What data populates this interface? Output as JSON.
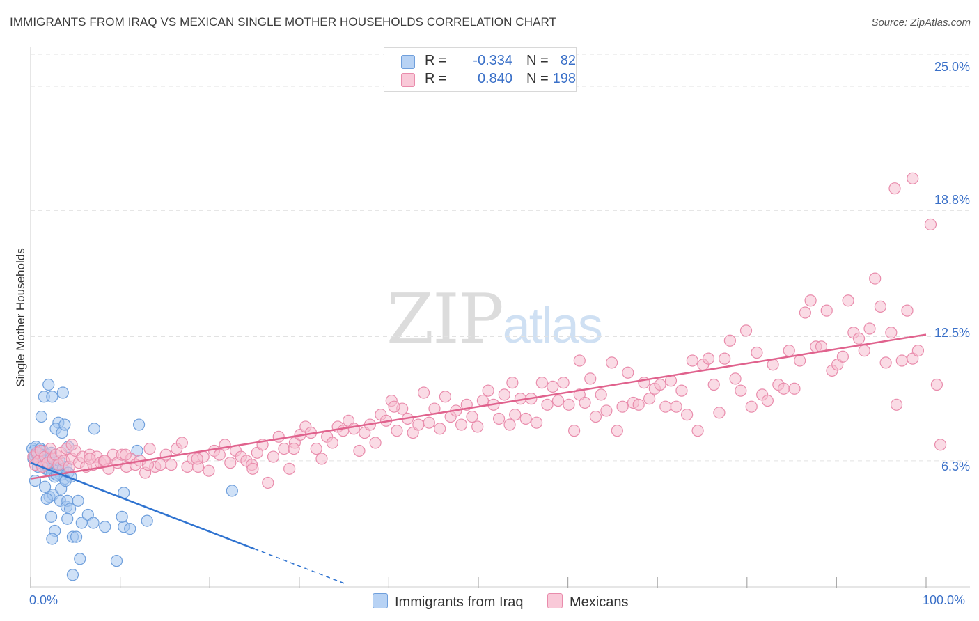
{
  "title": "IMMIGRANTS FROM IRAQ VS MEXICAN SINGLE MOTHER HOUSEHOLDS CORRELATION CHART",
  "source": "Source: ZipAtlas.com",
  "watermark": {
    "zip": "ZIP",
    "atlas": "atlas"
  },
  "legend": {
    "r_label": "R =",
    "n_label": "N =",
    "iraq": {
      "r": "-0.334",
      "n": "82"
    },
    "mexicans": {
      "r": "0.840",
      "n": "198"
    }
  },
  "colors": {
    "iraq_fill": "#a8c8f0",
    "iraq_stroke": "#6f9fdc",
    "iraq_line": "#2f73d0",
    "mex_fill": "#f6bdd0",
    "mex_stroke": "#e98cac",
    "mex_line": "#e0628d",
    "tick_text": "#3a70c8",
    "grid": "#e2e2e2"
  },
  "chart_data": {
    "type": "scatter",
    "title": "IMMIGRANTS FROM IRAQ VS MEXICAN SINGLE MOTHER HOUSEHOLDS CORRELATION CHART",
    "xlabel": "",
    "ylabel": "Single Mother Households",
    "x_unit": "%",
    "xlim": [
      0,
      100
    ],
    "ylim": [
      0,
      26.6
    ],
    "y_ticks": [
      6.3,
      12.5,
      18.8,
      25.0
    ],
    "y_tick_labels": [
      "6.3%",
      "12.5%",
      "18.8%",
      "25.0%"
    ],
    "x_tick_labels": [
      "0.0%",
      "100.0%"
    ],
    "grid": true,
    "legend_position": "bottom-center",
    "series": [
      {
        "name": "Immigrants from Iraq",
        "r": -0.334,
        "n": 82,
        "trend": {
          "x0": 0,
          "y0": 6.2,
          "x1": 25,
          "y1": 1.9,
          "dashed_to_x": 35
        },
        "points": [
          [
            0.2,
            6.9
          ],
          [
            0.3,
            6.4
          ],
          [
            0.4,
            6.8
          ],
          [
            0.5,
            6.5
          ],
          [
            0.6,
            7.0
          ],
          [
            0.7,
            6.6
          ],
          [
            0.8,
            6.3
          ],
          [
            0.9,
            6.7
          ],
          [
            1.0,
            6.2
          ],
          [
            1.1,
            6.9
          ],
          [
            1.2,
            6.5
          ],
          [
            1.3,
            6.4
          ],
          [
            1.4,
            6.8
          ],
          [
            1.5,
            6.1
          ],
          [
            1.6,
            6.6
          ],
          [
            1.7,
            5.9
          ],
          [
            1.8,
            6.3
          ],
          [
            1.9,
            6.6
          ],
          [
            2.0,
            6.0
          ],
          [
            2.1,
            5.8
          ],
          [
            2.2,
            6.4
          ],
          [
            2.3,
            6.7
          ],
          [
            2.4,
            5.7
          ],
          [
            2.6,
            6.2
          ],
          [
            2.7,
            5.5
          ],
          [
            2.8,
            6.1
          ],
          [
            3.0,
            5.8
          ],
          [
            3.2,
            6.3
          ],
          [
            3.4,
            5.6
          ],
          [
            3.6,
            5.9
          ],
          [
            3.8,
            5.4
          ],
          [
            4.0,
            6.0
          ],
          [
            4.2,
            5.7
          ],
          [
            4.5,
            5.5
          ],
          [
            0.5,
            5.3
          ],
          [
            1.2,
            8.5
          ],
          [
            1.5,
            9.5
          ],
          [
            2.0,
            10.1
          ],
          [
            2.4,
            9.5
          ],
          [
            3.1,
            8.2
          ],
          [
            3.6,
            9.7
          ],
          [
            2.8,
            7.9
          ],
          [
            3.5,
            7.7
          ],
          [
            3.8,
            8.1
          ],
          [
            4.2,
            7.0
          ],
          [
            7.1,
            7.9
          ],
          [
            12.1,
            8.1
          ],
          [
            11.9,
            6.8
          ],
          [
            1.6,
            5.0
          ],
          [
            2.1,
            4.5
          ],
          [
            2.5,
            4.6
          ],
          [
            2.9,
            5.6
          ],
          [
            3.4,
            4.9
          ],
          [
            1.8,
            4.4
          ],
          [
            3.3,
            4.3
          ],
          [
            4.0,
            4.0
          ],
          [
            4.1,
            4.3
          ],
          [
            4.4,
            3.9
          ],
          [
            5.3,
            4.3
          ],
          [
            2.3,
            3.5
          ],
          [
            4.1,
            3.4
          ],
          [
            5.7,
            3.2
          ],
          [
            6.4,
            3.6
          ],
          [
            7.0,
            3.2
          ],
          [
            2.7,
            2.8
          ],
          [
            2.4,
            2.4
          ],
          [
            4.7,
            2.5
          ],
          [
            5.1,
            2.5
          ],
          [
            8.3,
            3.0
          ],
          [
            10.4,
            3.0
          ],
          [
            11.1,
            2.9
          ],
          [
            13.0,
            3.3
          ],
          [
            10.4,
            4.7
          ],
          [
            22.5,
            4.8
          ],
          [
            10.2,
            3.5
          ],
          [
            5.5,
            1.4
          ],
          [
            9.6,
            1.3
          ],
          [
            4.7,
            0.6
          ],
          [
            3.9,
            5.3
          ],
          [
            1.1,
            6.4
          ],
          [
            1.7,
            6.1
          ],
          [
            0.8,
            6.0
          ]
        ]
      },
      {
        "name": "Mexicans",
        "r": 0.84,
        "n": 198,
        "trend": {
          "x0": 0,
          "y0": 5.4,
          "x1": 100,
          "y1": 12.6
        },
        "points": [
          [
            0.3,
            6.5
          ],
          [
            0.5,
            6.1
          ],
          [
            0.7,
            6.7
          ],
          [
            0.9,
            6.3
          ],
          [
            1.1,
            6.8
          ],
          [
            1.3,
            6.0
          ],
          [
            1.6,
            6.5
          ],
          [
            1.9,
            6.2
          ],
          [
            2.2,
            6.9
          ],
          [
            2.5,
            6.4
          ],
          [
            2.8,
            6.6
          ],
          [
            3.1,
            6.1
          ],
          [
            3.4,
            6.7
          ],
          [
            3.7,
            6.3
          ],
          [
            4.0,
            6.9
          ],
          [
            4.3,
            6.0
          ],
          [
            4.6,
            6.4
          ],
          [
            5.0,
            6.8
          ],
          [
            5.4,
            6.2
          ],
          [
            5.8,
            6.5
          ],
          [
            6.2,
            6.0
          ],
          [
            6.6,
            6.6
          ],
          [
            7.0,
            6.1
          ],
          [
            7.4,
            6.5
          ],
          [
            7.8,
            6.2
          ],
          [
            8.2,
            6.3
          ],
          [
            8.7,
            5.9
          ],
          [
            9.2,
            6.6
          ],
          [
            9.7,
            6.2
          ],
          [
            10.2,
            6.6
          ],
          [
            10.7,
            6.0
          ],
          [
            11.2,
            6.4
          ],
          [
            11.7,
            6.1
          ],
          [
            12.2,
            6.3
          ],
          [
            12.8,
            5.7
          ],
          [
            13.3,
            6.9
          ],
          [
            13.9,
            6.0
          ],
          [
            14.5,
            6.1
          ],
          [
            15.1,
            6.6
          ],
          [
            15.7,
            6.1
          ],
          [
            16.3,
            6.9
          ],
          [
            16.9,
            7.2
          ],
          [
            17.5,
            6.0
          ],
          [
            18.1,
            6.4
          ],
          [
            18.7,
            6.0
          ],
          [
            19.3,
            6.5
          ],
          [
            19.9,
            5.8
          ],
          [
            20.5,
            6.8
          ],
          [
            21.1,
            6.6
          ],
          [
            21.7,
            7.1
          ],
          [
            22.3,
            6.2
          ],
          [
            22.9,
            6.8
          ],
          [
            23.5,
            6.5
          ],
          [
            24.1,
            6.3
          ],
          [
            24.7,
            6.1
          ],
          [
            25.3,
            6.7
          ],
          [
            25.9,
            7.1
          ],
          [
            26.5,
            5.2
          ],
          [
            27.1,
            6.5
          ],
          [
            27.7,
            7.5
          ],
          [
            28.3,
            6.9
          ],
          [
            28.9,
            5.9
          ],
          [
            29.5,
            7.2
          ],
          [
            30.1,
            7.6
          ],
          [
            30.7,
            8.0
          ],
          [
            31.3,
            7.7
          ],
          [
            31.9,
            6.9
          ],
          [
            32.5,
            6.4
          ],
          [
            33.1,
            7.5
          ],
          [
            33.7,
            7.2
          ],
          [
            34.3,
            8.0
          ],
          [
            34.9,
            7.8
          ],
          [
            35.5,
            8.3
          ],
          [
            36.1,
            7.9
          ],
          [
            36.7,
            6.8
          ],
          [
            37.3,
            7.7
          ],
          [
            37.9,
            8.1
          ],
          [
            38.5,
            7.2
          ],
          [
            39.1,
            8.6
          ],
          [
            39.7,
            8.3
          ],
          [
            40.3,
            9.3
          ],
          [
            40.9,
            7.8
          ],
          [
            41.5,
            8.9
          ],
          [
            42.1,
            8.4
          ],
          [
            42.7,
            7.7
          ],
          [
            43.3,
            8.1
          ],
          [
            43.9,
            9.7
          ],
          [
            44.5,
            8.2
          ],
          [
            45.1,
            8.9
          ],
          [
            45.7,
            7.9
          ],
          [
            46.3,
            9.5
          ],
          [
            46.9,
            8.5
          ],
          [
            47.5,
            8.8
          ],
          [
            48.1,
            8.1
          ],
          [
            48.7,
            9.1
          ],
          [
            49.3,
            8.5
          ],
          [
            49.9,
            8.0
          ],
          [
            50.5,
            9.3
          ],
          [
            51.1,
            9.8
          ],
          [
            51.7,
            9.1
          ],
          [
            52.3,
            8.4
          ],
          [
            52.9,
            9.6
          ],
          [
            53.5,
            8.1
          ],
          [
            54.1,
            8.6
          ],
          [
            54.7,
            9.4
          ],
          [
            55.3,
            8.4
          ],
          [
            55.9,
            9.4
          ],
          [
            56.5,
            8.2
          ],
          [
            57.1,
            10.2
          ],
          [
            57.7,
            9.1
          ],
          [
            58.3,
            10.0
          ],
          [
            58.9,
            9.3
          ],
          [
            59.5,
            10.2
          ],
          [
            60.1,
            9.1
          ],
          [
            60.7,
            7.8
          ],
          [
            61.3,
            9.6
          ],
          [
            61.9,
            9.2
          ],
          [
            62.5,
            10.4
          ],
          [
            63.1,
            8.5
          ],
          [
            63.7,
            9.6
          ],
          [
            64.3,
            8.8
          ],
          [
            64.9,
            11.2
          ],
          [
            65.5,
            7.8
          ],
          [
            66.1,
            9.0
          ],
          [
            66.7,
            10.7
          ],
          [
            67.3,
            9.2
          ],
          [
            67.9,
            9.1
          ],
          [
            68.5,
            10.2
          ],
          [
            69.1,
            9.4
          ],
          [
            69.7,
            9.9
          ],
          [
            70.3,
            10.1
          ],
          [
            70.9,
            9.0
          ],
          [
            71.5,
            10.3
          ],
          [
            72.1,
            9.0
          ],
          [
            72.7,
            9.8
          ],
          [
            73.3,
            8.6
          ],
          [
            73.9,
            11.3
          ],
          [
            74.5,
            7.8
          ],
          [
            75.1,
            11.1
          ],
          [
            75.7,
            11.4
          ],
          [
            76.3,
            10.1
          ],
          [
            76.9,
            8.7
          ],
          [
            77.5,
            11.4
          ],
          [
            78.1,
            12.3
          ],
          [
            78.7,
            10.4
          ],
          [
            79.3,
            9.8
          ],
          [
            79.9,
            12.8
          ],
          [
            80.5,
            9.0
          ],
          [
            81.1,
            11.7
          ],
          [
            81.7,
            9.6
          ],
          [
            82.3,
            9.3
          ],
          [
            82.9,
            11.1
          ],
          [
            83.5,
            10.1
          ],
          [
            84.1,
            9.9
          ],
          [
            84.7,
            11.8
          ],
          [
            85.3,
            9.9
          ],
          [
            85.9,
            11.3
          ],
          [
            86.5,
            13.7
          ],
          [
            87.1,
            14.3
          ],
          [
            87.7,
            12.0
          ],
          [
            88.3,
            12.0
          ],
          [
            88.9,
            13.8
          ],
          [
            89.5,
            10.8
          ],
          [
            90.1,
            11.1
          ],
          [
            90.7,
            11.5
          ],
          [
            91.3,
            14.3
          ],
          [
            91.9,
            12.7
          ],
          [
            92.5,
            12.4
          ],
          [
            93.1,
            11.8
          ],
          [
            93.7,
            12.9
          ],
          [
            94.3,
            15.4
          ],
          [
            94.9,
            14.0
          ],
          [
            95.5,
            11.2
          ],
          [
            96.1,
            12.7
          ],
          [
            96.7,
            9.1
          ],
          [
            97.3,
            11.3
          ],
          [
            97.9,
            13.8
          ],
          [
            98.5,
            11.4
          ],
          [
            99.1,
            11.8
          ],
          [
            101.2,
            10.1
          ],
          [
            101.6,
            7.1
          ],
          [
            96.5,
            19.9
          ],
          [
            98.5,
            20.4
          ],
          [
            100.5,
            18.1
          ],
          [
            4.6,
            7.1
          ],
          [
            6.6,
            6.4
          ],
          [
            8.3,
            6.3
          ],
          [
            10.6,
            6.6
          ],
          [
            13.1,
            6.1
          ],
          [
            18.6,
            6.4
          ],
          [
            24.8,
            5.9
          ],
          [
            29.4,
            6.9
          ],
          [
            40.6,
            9.0
          ],
          [
            53.8,
            10.2
          ],
          [
            61.3,
            11.3
          ]
        ]
      }
    ]
  }
}
